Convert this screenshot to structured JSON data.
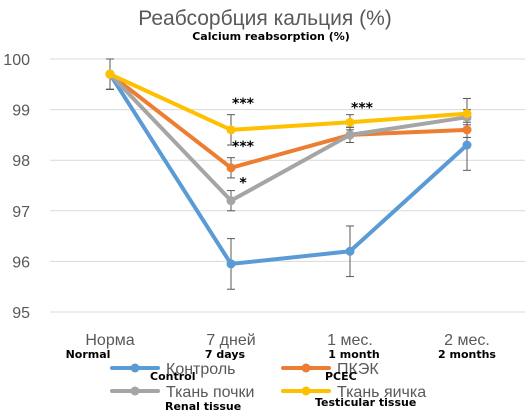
{
  "chart_data": {
    "type": "line",
    "title": "Реабсорбция кальция (%)",
    "subtitle": "Calcium reabsorption (%)",
    "categories": [
      "Норма",
      "7 дней",
      "1 мес.",
      "2 мес."
    ],
    "categories_en": [
      "Normal",
      "7 days",
      "1 month",
      "2 months"
    ],
    "ylim": [
      95,
      100
    ],
    "yticks": [
      95,
      96,
      97,
      98,
      99,
      100
    ],
    "grid": true,
    "legend_position": "bottom",
    "series": [
      {
        "name": "Контроль",
        "name_en": "Control",
        "color": "#5b9bd5",
        "values": [
          99.7,
          95.95,
          96.2,
          98.3
        ],
        "errors": [
          0.3,
          0.5,
          0.5,
          0.5
        ]
      },
      {
        "name": "ПКЭК",
        "name_en": "PCEC",
        "color": "#ed7d31",
        "values": [
          99.7,
          97.85,
          98.5,
          98.6
        ],
        "errors": [
          0.3,
          0.2,
          0.15,
          0.15
        ]
      },
      {
        "name": "Ткань почки",
        "name_en": "Renal tissue",
        "color": "#a5a5a5",
        "values": [
          99.7,
          97.2,
          98.5,
          98.85
        ],
        "errors": [
          0.3,
          0.2,
          0.15,
          0.15
        ]
      },
      {
        "name": "Ткань яичка",
        "name_en": "Testicular tissue",
        "color": "#ffc000",
        "values": [
          99.7,
          98.6,
          98.75,
          98.92
        ],
        "errors": [
          0.3,
          0.3,
          0.15,
          0.3
        ]
      }
    ],
    "annotations": [
      {
        "text": "***",
        "category_index": 1,
        "series_index": 3
      },
      {
        "text": "***",
        "category_index": 1,
        "series_index": 1
      },
      {
        "text": "*",
        "category_index": 1,
        "series_index": 2
      },
      {
        "text": "***",
        "category_index": 2,
        "series_index": 3
      }
    ]
  }
}
